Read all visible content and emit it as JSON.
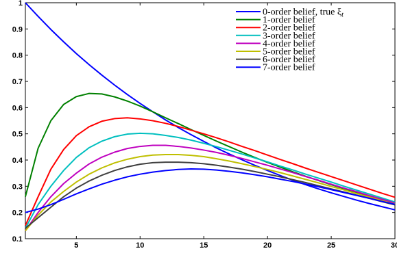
{
  "chart_data": {
    "type": "line",
    "xlim": [
      1,
      30
    ],
    "ylim": [
      0.1,
      1.0
    ],
    "grid": false,
    "legend_position": "top-right",
    "x_ticks": [
      5,
      10,
      15,
      20,
      25,
      30
    ],
    "y_ticks": [
      0.1,
      0.2,
      0.3,
      0.4,
      0.5,
      0.6,
      0.7,
      0.8,
      0.9,
      1
    ],
    "x_tick_labels": [
      "5",
      "10",
      "15",
      "20",
      "25",
      "30"
    ],
    "y_tick_labels": [
      "0.1",
      "0.2",
      "0.3",
      "0.4",
      "0.5",
      "0.6",
      "0.7",
      "0.8",
      "0.9",
      "1"
    ],
    "x": [
      1,
      2,
      3,
      4,
      5,
      6,
      7,
      8,
      9,
      10,
      11,
      12,
      13,
      14,
      15,
      16,
      17,
      18,
      19,
      20,
      21,
      22,
      23,
      24,
      25,
      26,
      27,
      28,
      29,
      30
    ],
    "series": [
      {
        "name": "0-order belief, true ξ",
        "name_subscript": "t",
        "color": "#0000ff",
        "values": [
          1.0,
          0.948,
          0.898,
          0.851,
          0.806,
          0.764,
          0.724,
          0.686,
          0.65,
          0.616,
          0.584,
          0.553,
          0.524,
          0.497,
          0.471,
          0.446,
          0.423,
          0.401,
          0.38,
          0.36,
          0.341,
          0.323,
          0.306,
          0.29,
          0.275,
          0.261,
          0.247,
          0.234,
          0.222,
          0.21
        ]
      },
      {
        "name": "1-order belief",
        "color": "#008000",
        "values": [
          0.26,
          0.445,
          0.55,
          0.612,
          0.642,
          0.654,
          0.652,
          0.641,
          0.625,
          0.606,
          0.584,
          0.561,
          0.539,
          0.516,
          0.494,
          0.472,
          0.451,
          0.43,
          0.41,
          0.391,
          0.373,
          0.355,
          0.338,
          0.322,
          0.306,
          0.291,
          0.277,
          0.263,
          0.25,
          0.237
        ]
      },
      {
        "name": "2-order belief",
        "color": "#ff0000",
        "values": [
          0.15,
          0.26,
          0.365,
          0.44,
          0.493,
          0.527,
          0.548,
          0.558,
          0.561,
          0.557,
          0.55,
          0.54,
          0.528,
          0.514,
          0.5,
          0.485,
          0.469,
          0.452,
          0.436,
          0.419,
          0.402,
          0.386,
          0.369,
          0.353,
          0.337,
          0.321,
          0.305,
          0.289,
          0.273,
          0.258
        ]
      },
      {
        "name": "3-order belief",
        "color": "#00bfbf",
        "values": [
          0.14,
          0.23,
          0.3,
          0.36,
          0.41,
          0.447,
          0.472,
          0.489,
          0.499,
          0.502,
          0.5,
          0.494,
          0.486,
          0.476,
          0.464,
          0.451,
          0.437,
          0.423,
          0.408,
          0.393,
          0.377,
          0.362,
          0.346,
          0.331,
          0.316,
          0.3,
          0.285,
          0.27,
          0.255,
          0.24
        ]
      },
      {
        "name": "4-order belief",
        "color": "#bf00bf",
        "values": [
          0.13,
          0.2,
          0.26,
          0.31,
          0.35,
          0.385,
          0.411,
          0.43,
          0.444,
          0.452,
          0.456,
          0.456,
          0.452,
          0.446,
          0.438,
          0.429,
          0.418,
          0.406,
          0.393,
          0.38,
          0.366,
          0.352,
          0.337,
          0.323,
          0.308,
          0.293,
          0.279,
          0.264,
          0.25,
          0.236
        ]
      },
      {
        "name": "5-order belief",
        "color": "#bfbf00",
        "values": [
          0.13,
          0.19,
          0.24,
          0.28,
          0.316,
          0.346,
          0.37,
          0.389,
          0.403,
          0.413,
          0.419,
          0.421,
          0.421,
          0.418,
          0.413,
          0.405,
          0.396,
          0.386,
          0.375,
          0.364,
          0.352,
          0.339,
          0.326,
          0.313,
          0.299,
          0.286,
          0.272,
          0.259,
          0.245,
          0.232
        ]
      },
      {
        "name": "6-order belief",
        "color": "#404040",
        "values": [
          0.14,
          0.18,
          0.22,
          0.26,
          0.293,
          0.32,
          0.342,
          0.36,
          0.374,
          0.384,
          0.39,
          0.392,
          0.392,
          0.39,
          0.386,
          0.38,
          0.373,
          0.365,
          0.356,
          0.346,
          0.336,
          0.325,
          0.314,
          0.302,
          0.29,
          0.278,
          0.266,
          0.254,
          0.241,
          0.229
        ]
      },
      {
        "name": "7-order belief",
        "color": "#0000ff",
        "values": [
          0.2,
          0.213,
          0.23,
          0.25,
          0.271,
          0.29,
          0.308,
          0.323,
          0.336,
          0.346,
          0.354,
          0.36,
          0.364,
          0.366,
          0.365,
          0.362,
          0.357,
          0.351,
          0.344,
          0.336,
          0.327,
          0.318,
          0.308,
          0.298,
          0.287,
          0.276,
          0.265,
          0.254,
          0.242,
          0.231
        ]
      }
    ]
  }
}
